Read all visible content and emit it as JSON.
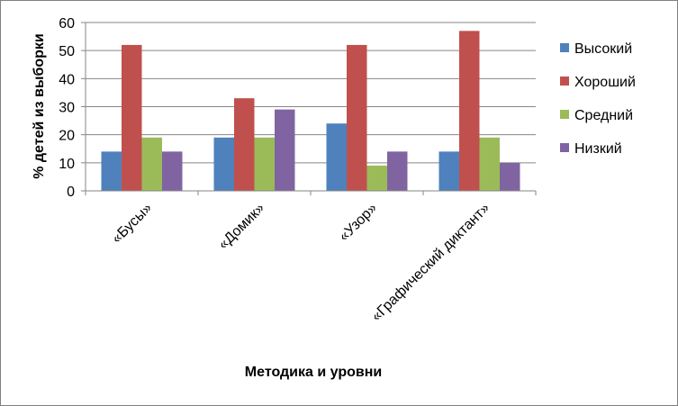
{
  "chart_data": {
    "type": "bar",
    "categories": [
      "«Бусы»",
      "«Домик»",
      "«Узор»",
      "«Графический диктант»"
    ],
    "series": [
      {
        "name": "Высокий",
        "values": [
          14,
          19,
          24,
          14
        ],
        "color": "#4F81BD"
      },
      {
        "name": "Хороший",
        "values": [
          52,
          33,
          52,
          57
        ],
        "color": "#C0504D"
      },
      {
        "name": "Средний",
        "values": [
          19,
          19,
          9,
          19
        ],
        "color": "#9BBB59"
      },
      {
        "name": "Низкий",
        "values": [
          14,
          29,
          14,
          10
        ],
        "color": "#8064A2"
      }
    ],
    "xlabel": "Методика и уровни",
    "ylabel": "% детей из выборки",
    "ylim": [
      0,
      60
    ],
    "yticks": [
      0,
      10,
      20,
      30,
      40,
      50,
      60
    ],
    "grid": true,
    "legend": "right"
  }
}
